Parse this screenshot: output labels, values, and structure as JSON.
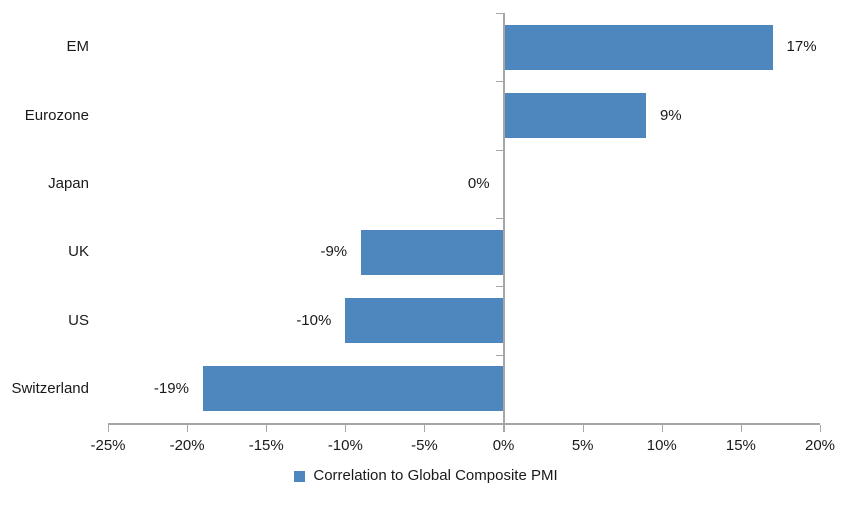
{
  "chart_data": {
    "type": "bar",
    "orientation": "horizontal",
    "title": "",
    "categories": [
      "EM",
      "Eurozone",
      "Japan",
      "UK",
      "US",
      "Switzerland"
    ],
    "values": [
      17,
      9,
      0,
      -9,
      -10,
      -19
    ],
    "value_labels": [
      "17%",
      "9%",
      "0%",
      "-9%",
      "-10%",
      "-19%"
    ],
    "xlim": [
      -25,
      20
    ],
    "x_ticks": [
      -25,
      -20,
      -15,
      -10,
      -5,
      0,
      5,
      10,
      15,
      20
    ],
    "x_tick_labels": [
      "-25%",
      "-20%",
      "-15%",
      "-10%",
      "-5%",
      "0%",
      "5%",
      "10%",
      "15%",
      "20%"
    ],
    "grid": false,
    "bar_color": "#4E87BE",
    "axis_color": "#A6A6A6",
    "text_color": "#1a1a1a",
    "legend_position": "bottom-center",
    "legend": [
      {
        "label": "Correlation to Global Composite PMI",
        "color": "#4E87BE"
      }
    ]
  }
}
